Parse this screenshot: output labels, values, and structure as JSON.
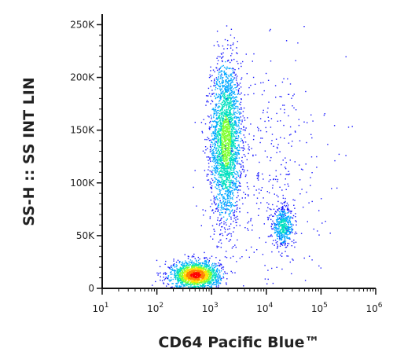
{
  "chart_data": {
    "type": "scatter",
    "plot_style": "density-colored flow cytometry dot plot",
    "xlabel": "CD64 Pacific Blue™",
    "ylabel": "SS-H :: SS INT LIN",
    "x_scale": "log",
    "y_scale": "linear",
    "xlim": [
      10,
      1000000
    ],
    "ylim": [
      0,
      260000
    ],
    "x_ticks": [
      {
        "value": 10,
        "base": "10",
        "exp": "1"
      },
      {
        "value": 100,
        "base": "10",
        "exp": "2"
      },
      {
        "value": 1000,
        "base": "10",
        "exp": "3"
      },
      {
        "value": 10000,
        "base": "10",
        "exp": "4"
      },
      {
        "value": 100000,
        "base": "10",
        "exp": "5"
      },
      {
        "value": 1000000,
        "base": "10",
        "exp": "6"
      }
    ],
    "y_ticks": [
      {
        "value": 0,
        "label": "0"
      },
      {
        "value": 50000,
        "label": "50K"
      },
      {
        "value": 100000,
        "label": "100K"
      },
      {
        "value": 150000,
        "label": "150K"
      },
      {
        "value": 200000,
        "label": "200K"
      },
      {
        "value": 250000,
        "label": "250K"
      }
    ],
    "grid": false,
    "density_colors": [
      "#1a1aff",
      "#00a8ff",
      "#00e0c0",
      "#7fff30",
      "#ffe000",
      "#ff8000",
      "#ff0000"
    ],
    "populations": [
      {
        "center_x": 1800,
        "center_y": 140000,
        "log_spread_x": 0.14,
        "spread_y": 38000,
        "count": 2600,
        "peak_color": "#7fff30"
      },
      {
        "center_x": 20000,
        "center_y": 59000,
        "log_spread_x": 0.1,
        "spread_y": 9000,
        "count": 500,
        "peak_color": "#00e0c0"
      },
      {
        "center_x": 500,
        "center_y": 13000,
        "log_spread_x": 0.22,
        "spread_y": 6500,
        "count": 1800,
        "peak_color": "#ff0000"
      },
      {
        "center_x": 12000,
        "center_y": 110000,
        "log_spread_x": 0.5,
        "spread_y": 60000,
        "count": 380,
        "peak_color": "#1a1aff"
      }
    ]
  }
}
